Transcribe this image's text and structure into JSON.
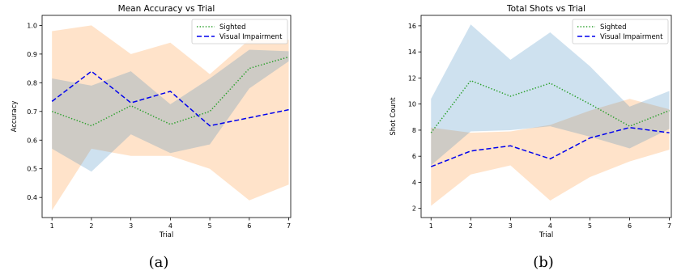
{
  "chart_data": [
    {
      "type": "line",
      "title": "Mean Accuracy vs Trial",
      "xlabel": "Trial",
      "ylabel": "Accuracy",
      "caption": "(a)",
      "x": [
        1,
        2,
        3,
        4,
        5,
        6,
        7
      ],
      "xticks": [
        1,
        2,
        3,
        4,
        5,
        6,
        7
      ],
      "xlim": [
        0.75,
        7.05
      ],
      "yticks": [
        0.4,
        0.5,
        0.6,
        0.7,
        0.8,
        0.9,
        1.0
      ],
      "ytick_labels": [
        "0.4",
        "0.5",
        "0.6",
        "0.7",
        "0.8",
        "0.9",
        "1.0"
      ],
      "ylim": [
        0.33,
        1.035
      ],
      "grid": false,
      "legend_position": "top-right",
      "series": [
        {
          "name": "Sighted",
          "color": "#2ca02c",
          "style": "dotted",
          "values": [
            0.7,
            0.65,
            0.72,
            0.655,
            0.7,
            0.85,
            0.89
          ],
          "band_lower": [
            0.57,
            0.49,
            0.62,
            0.555,
            0.585,
            0.78,
            0.875
          ],
          "band_upper": [
            0.815,
            0.79,
            0.84,
            0.725,
            0.815,
            0.915,
            0.91
          ],
          "band_color": "#1f77b4"
        },
        {
          "name": "Visual Impairment",
          "color": "#0000ee",
          "style": "dashed",
          "values": [
            0.735,
            0.84,
            0.73,
            0.77,
            0.65,
            0.678,
            0.706
          ],
          "band_lower": [
            0.355,
            0.57,
            0.545,
            0.545,
            0.5,
            0.39,
            0.445
          ],
          "band_upper": [
            0.98,
            1.0,
            0.9,
            0.94,
            0.83,
            0.95,
            0.95
          ],
          "band_color": "#ff7f0e"
        }
      ]
    },
    {
      "type": "line",
      "title": "Total Shots vs Trial",
      "xlabel": "Trial",
      "ylabel": "Shot Count",
      "caption": "(b)",
      "x": [
        1,
        2,
        3,
        4,
        5,
        6,
        7
      ],
      "xticks": [
        1,
        2,
        3,
        4,
        5,
        6,
        7
      ],
      "xlim": [
        0.75,
        7.05
      ],
      "yticks": [
        2,
        4,
        6,
        8,
        10,
        12,
        14,
        16
      ],
      "ytick_labels": [
        "2",
        "4",
        "6",
        "8",
        "10",
        "12",
        "14",
        "16"
      ],
      "ylim": [
        1.3,
        16.8
      ],
      "grid": false,
      "legend_position": "top-right",
      "series": [
        {
          "name": "Sighted",
          "color": "#2ca02c",
          "style": "dotted",
          "values": [
            7.8,
            11.8,
            10.6,
            11.6,
            10.0,
            8.3,
            9.5
          ],
          "band_lower": [
            5.3,
            7.9,
            8.0,
            8.3,
            7.5,
            6.6,
            8.1
          ],
          "band_upper": [
            10.4,
            16.1,
            13.4,
            15.5,
            12.9,
            9.8,
            11.0
          ],
          "band_color": "#1f77b4"
        },
        {
          "name": "Visual Impairment",
          "color": "#0000ee",
          "style": "dashed",
          "values": [
            5.2,
            6.4,
            6.8,
            5.8,
            7.4,
            8.2,
            7.8
          ],
          "band_lower": [
            2.2,
            4.6,
            5.3,
            2.6,
            4.4,
            5.6,
            6.5
          ],
          "band_upper": [
            8.2,
            7.8,
            7.9,
            8.4,
            9.5,
            10.4,
            9.6
          ],
          "band_color": "#ff7f0e"
        }
      ]
    }
  ]
}
